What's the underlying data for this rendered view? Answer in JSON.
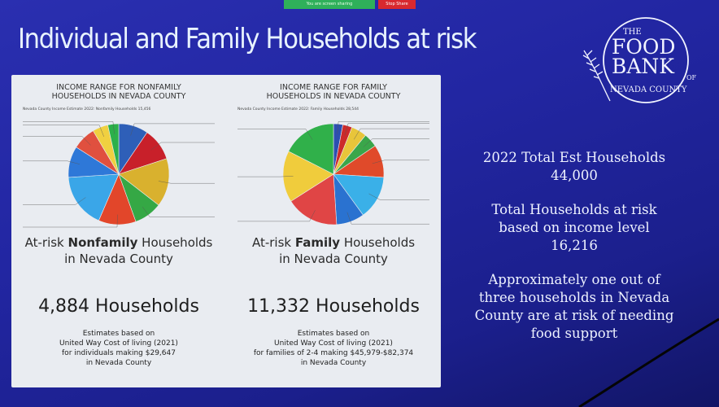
{
  "share_bar": {
    "status": "You are screen sharing",
    "stop": "Stop Share",
    "colors": {
      "status": "#2fb05a",
      "stop": "#d8292f"
    }
  },
  "slide": {
    "title": "Individual and Family Households at risk",
    "background": "#1a1f8f",
    "logo": {
      "line1": "THE",
      "line2": "FOOD",
      "line3": "BANK",
      "of": "OF",
      "line4": "NEVADA COUNTY",
      "icon": "wheat-stalk-icon"
    }
  },
  "charts": {
    "nonfamily": {
      "title_line1": "INCOME RANGE FOR NONFAMILY",
      "title_line2": "HOUSEHOLDS IN NEVADA COUNTY",
      "subtitle": "Nevada County Income Estimate 2022: Nonfamily Households 15,456",
      "atrisk_prefix": "At-risk ",
      "atrisk_bold": "Nonfamily",
      "atrisk_suffix": " Households",
      "atrisk_line2": "in Nevada County",
      "count": "4,884 Households",
      "note_line1": "Estimates based on",
      "note_line2": "United Way Cost of living (2021)",
      "note_line3": "for individuals making $29,647",
      "note_line4": "in Nevada County"
    },
    "family": {
      "title_line1": "INCOME RANGE FOR FAMILY",
      "title_line2": "HOUSEHOLDS IN NEVADA COUNTY",
      "subtitle": "Nevada County Income Estimate 2022: Family Households 28,544",
      "atrisk_prefix": "At-risk ",
      "atrisk_bold": "Family",
      "atrisk_suffix": " Households",
      "atrisk_line2": "in Nevada County",
      "count": "11,332 Households",
      "note_line1": "Estimates based on",
      "note_line2": "United Way Cost of living (2021)",
      "note_line3": "for families of 2-4 making $45,979-$82,374",
      "note_line4": "in Nevada County"
    }
  },
  "stats": {
    "total_label": "2022 Total Est Households",
    "total_value": "44,000",
    "risk_line1": "Total Households at risk",
    "risk_line2": "based on income level",
    "risk_value": "16,216",
    "approx_line1": "Approximately one out of",
    "approx_line2": "three households in Nevada",
    "approx_line3": "County are at risk of needing",
    "approx_line4": "food support"
  },
  "chart_data": [
    {
      "type": "pie",
      "title": "INCOME RANGE FOR NONFAMILY HOUSEHOLDS IN NEVADA COUNTY",
      "slices": [
        {
          "value": 9.5,
          "color": "#2e5fb8"
        },
        {
          "value": 10.5,
          "color": "#c8202a"
        },
        {
          "value": 15.5,
          "color": "#d9b12e"
        },
        {
          "value": 9.0,
          "color": "#35a845"
        },
        {
          "value": 12.0,
          "color": "#e2462a"
        },
        {
          "value": 17.5,
          "color": "#3aa6e8"
        },
        {
          "value": 10.0,
          "color": "#2e78d8"
        },
        {
          "value": 7.5,
          "color": "#e0503f"
        },
        {
          "value": 5.0,
          "color": "#f0d040"
        },
        {
          "value": 3.5,
          "color": "#2cb04a"
        }
      ]
    },
    {
      "type": "pie",
      "title": "INCOME RANGE FOR FAMILY HOUSEHOLDS IN NEVADA COUNTY",
      "slices": [
        {
          "value": 3.0,
          "color": "#2d4fb0"
        },
        {
          "value": 3.0,
          "color": "#cc2a2a"
        },
        {
          "value": 5.0,
          "color": "#e8c53a"
        },
        {
          "value": 4.5,
          "color": "#3aa64a"
        },
        {
          "value": 10.5,
          "color": "#e04a2a"
        },
        {
          "value": 14.0,
          "color": "#3ab0e8"
        },
        {
          "value": 9.0,
          "color": "#2a72d0"
        },
        {
          "value": 17.0,
          "color": "#e04545"
        },
        {
          "value": 16.5,
          "color": "#f0cc3c"
        },
        {
          "value": 17.5,
          "color": "#30b04a"
        }
      ]
    }
  ]
}
